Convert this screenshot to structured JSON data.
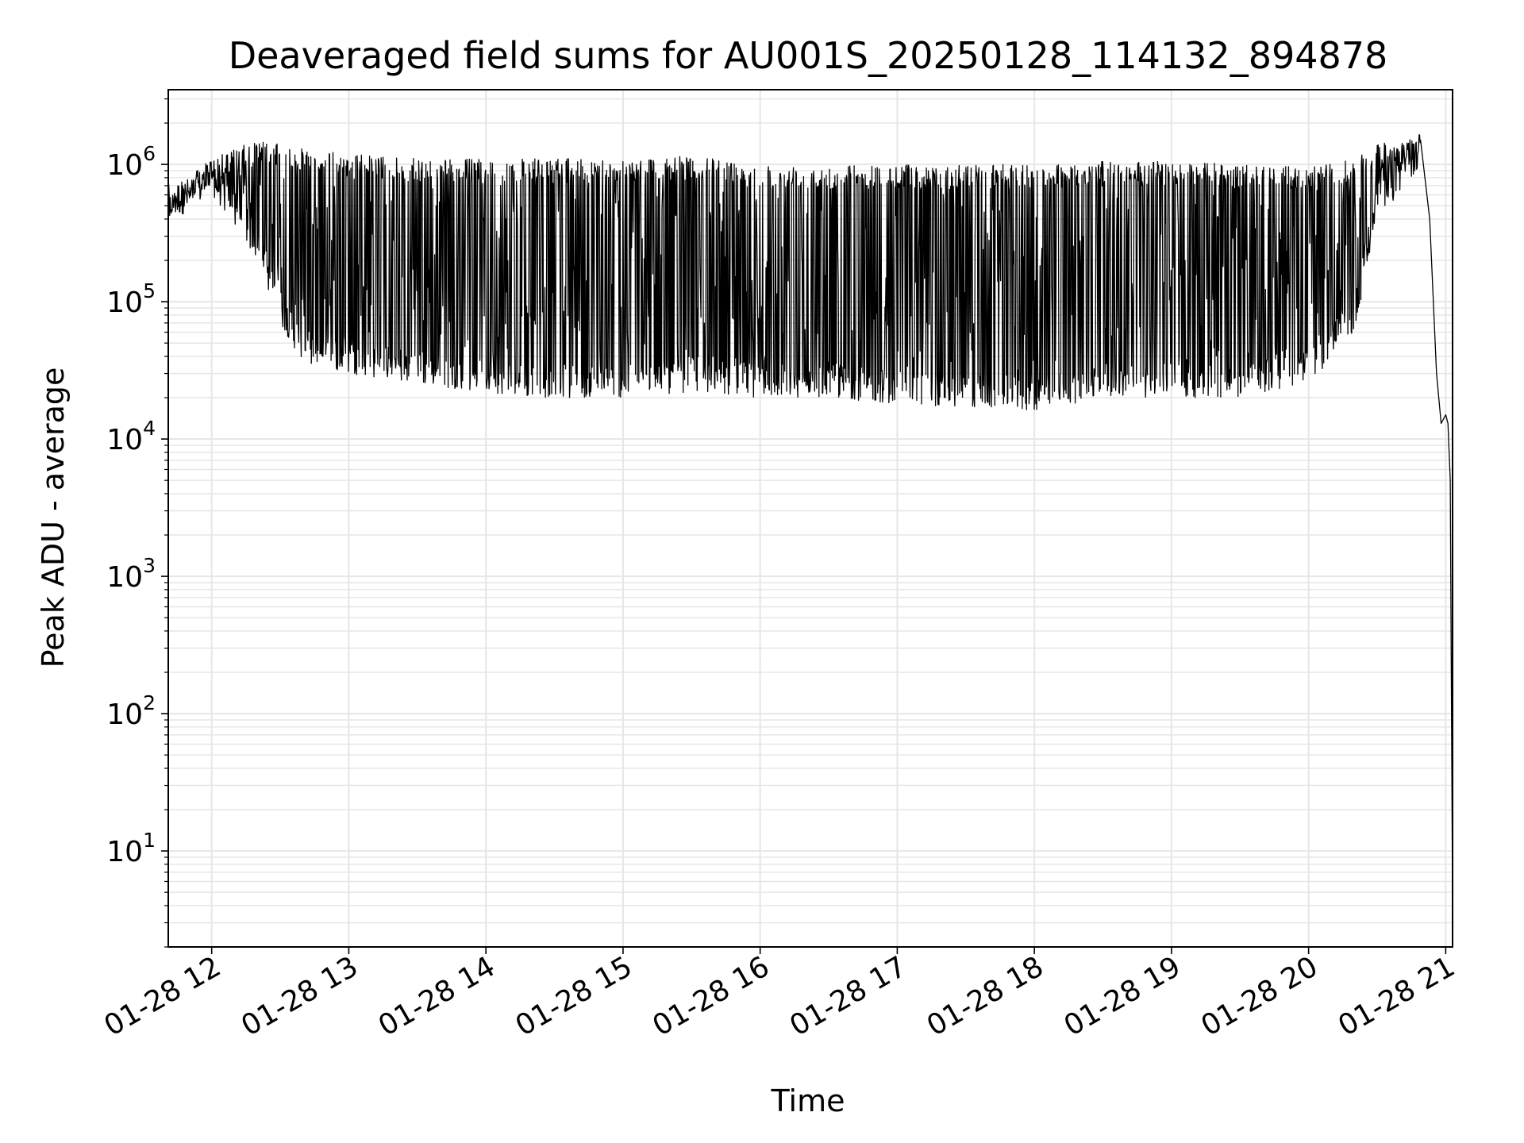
{
  "chart_data": {
    "type": "line",
    "title": "Deaveraged field sums for AU001S_20250128_114132_894878",
    "xlabel": "Time",
    "ylabel": "Peak ADU - average",
    "yscale": "log",
    "ylim": [
      2,
      3500000
    ],
    "xlim": [
      "2025-01-28 11:41",
      "2025-01-28 21:03"
    ],
    "grid": true,
    "line_color": "#000000",
    "grid_color": "#e6e6e6",
    "x_ticks": [
      {
        "t": "2025-01-28 12:00",
        "label": "01-28 12"
      },
      {
        "t": "2025-01-28 13:00",
        "label": "01-28 13"
      },
      {
        "t": "2025-01-28 14:00",
        "label": "01-28 14"
      },
      {
        "t": "2025-01-28 15:00",
        "label": "01-28 15"
      },
      {
        "t": "2025-01-28 16:00",
        "label": "01-28 16"
      },
      {
        "t": "2025-01-28 17:00",
        "label": "01-28 17"
      },
      {
        "t": "2025-01-28 18:00",
        "label": "01-28 18"
      },
      {
        "t": "2025-01-28 19:00",
        "label": "01-28 19"
      },
      {
        "t": "2025-01-28 20:00",
        "label": "01-28 20"
      },
      {
        "t": "2025-01-28 21:00",
        "label": "01-28 21"
      }
    ],
    "y_ticks": [
      {
        "value": 10,
        "base": "10",
        "exp": "1"
      },
      {
        "value": 100,
        "base": "10",
        "exp": "2"
      },
      {
        "value": 1000,
        "base": "10",
        "exp": "3"
      },
      {
        "value": 10000,
        "base": "10",
        "exp": "4"
      },
      {
        "value": 100000,
        "base": "10",
        "exp": "5"
      },
      {
        "value": 1000000,
        "base": "10",
        "exp": "6"
      }
    ],
    "series": [
      {
        "envelope": [
          {
            "t": "2025-01-28 11:41",
            "high": 600000,
            "low": 400000
          },
          {
            "t": "2025-01-28 11:50",
            "high": 800000,
            "low": 450000
          },
          {
            "t": "2025-01-28 12:00",
            "high": 1100000,
            "low": 600000
          },
          {
            "t": "2025-01-28 12:10",
            "high": 1300000,
            "low": 350000
          },
          {
            "t": "2025-01-28 12:20",
            "high": 1500000,
            "low": 200000
          },
          {
            "t": "2025-01-28 12:30",
            "high": 1400000,
            "low": 70000
          },
          {
            "t": "2025-01-28 12:40",
            "high": 1300000,
            "low": 35000
          },
          {
            "t": "2025-01-28 13:00",
            "high": 1200000,
            "low": 30000
          },
          {
            "t": "2025-01-28 13:30",
            "high": 1100000,
            "low": 25000
          },
          {
            "t": "2025-01-28 14:00",
            "high": 1100000,
            "low": 22000
          },
          {
            "t": "2025-01-28 14:20",
            "high": 1100000,
            "low": 20000
          },
          {
            "t": "2025-01-28 15:00",
            "high": 1100000,
            "low": 20000
          },
          {
            "t": "2025-01-28 15:30",
            "high": 1150000,
            "low": 22000
          },
          {
            "t": "2025-01-28 16:00",
            "high": 1000000,
            "low": 20000
          },
          {
            "t": "2025-01-28 16:30",
            "high": 1000000,
            "low": 20000
          },
          {
            "t": "2025-01-28 17:00",
            "high": 1000000,
            "low": 18000
          },
          {
            "t": "2025-01-28 17:30",
            "high": 1000000,
            "low": 17000
          },
          {
            "t": "2025-01-28 18:00",
            "high": 1000000,
            "low": 16000
          },
          {
            "t": "2025-01-28 18:30",
            "high": 1050000,
            "low": 20000
          },
          {
            "t": "2025-01-28 19:00",
            "high": 1050000,
            "low": 20000
          },
          {
            "t": "2025-01-28 19:30",
            "high": 1000000,
            "low": 20000
          },
          {
            "t": "2025-01-28 20:00",
            "high": 950000,
            "low": 25000
          },
          {
            "t": "2025-01-28 20:20",
            "high": 1100000,
            "low": 60000
          },
          {
            "t": "2025-01-28 20:30",
            "high": 1400000,
            "low": 400000
          },
          {
            "t": "2025-01-28 20:40",
            "high": 1500000,
            "low": 600000
          },
          {
            "t": "2025-01-28 20:49",
            "high": 1600000,
            "low": 1000000
          }
        ],
        "tail": [
          {
            "t": "2025-01-28 20:49",
            "y": 1500000
          },
          {
            "t": "2025-01-28 20:53",
            "y": 400000
          },
          {
            "t": "2025-01-28 20:56",
            "y": 30000
          },
          {
            "t": "2025-01-28 20:58",
            "y": 13000
          },
          {
            "t": "2025-01-28 21:00",
            "y": 15000
          },
          {
            "t": "2025-01-28 21:01",
            "y": 13000
          },
          {
            "t": "2025-01-28 21:02",
            "y": 5000
          },
          {
            "t": "2025-01-28 21:03",
            "y": 4
          }
        ]
      }
    ]
  }
}
